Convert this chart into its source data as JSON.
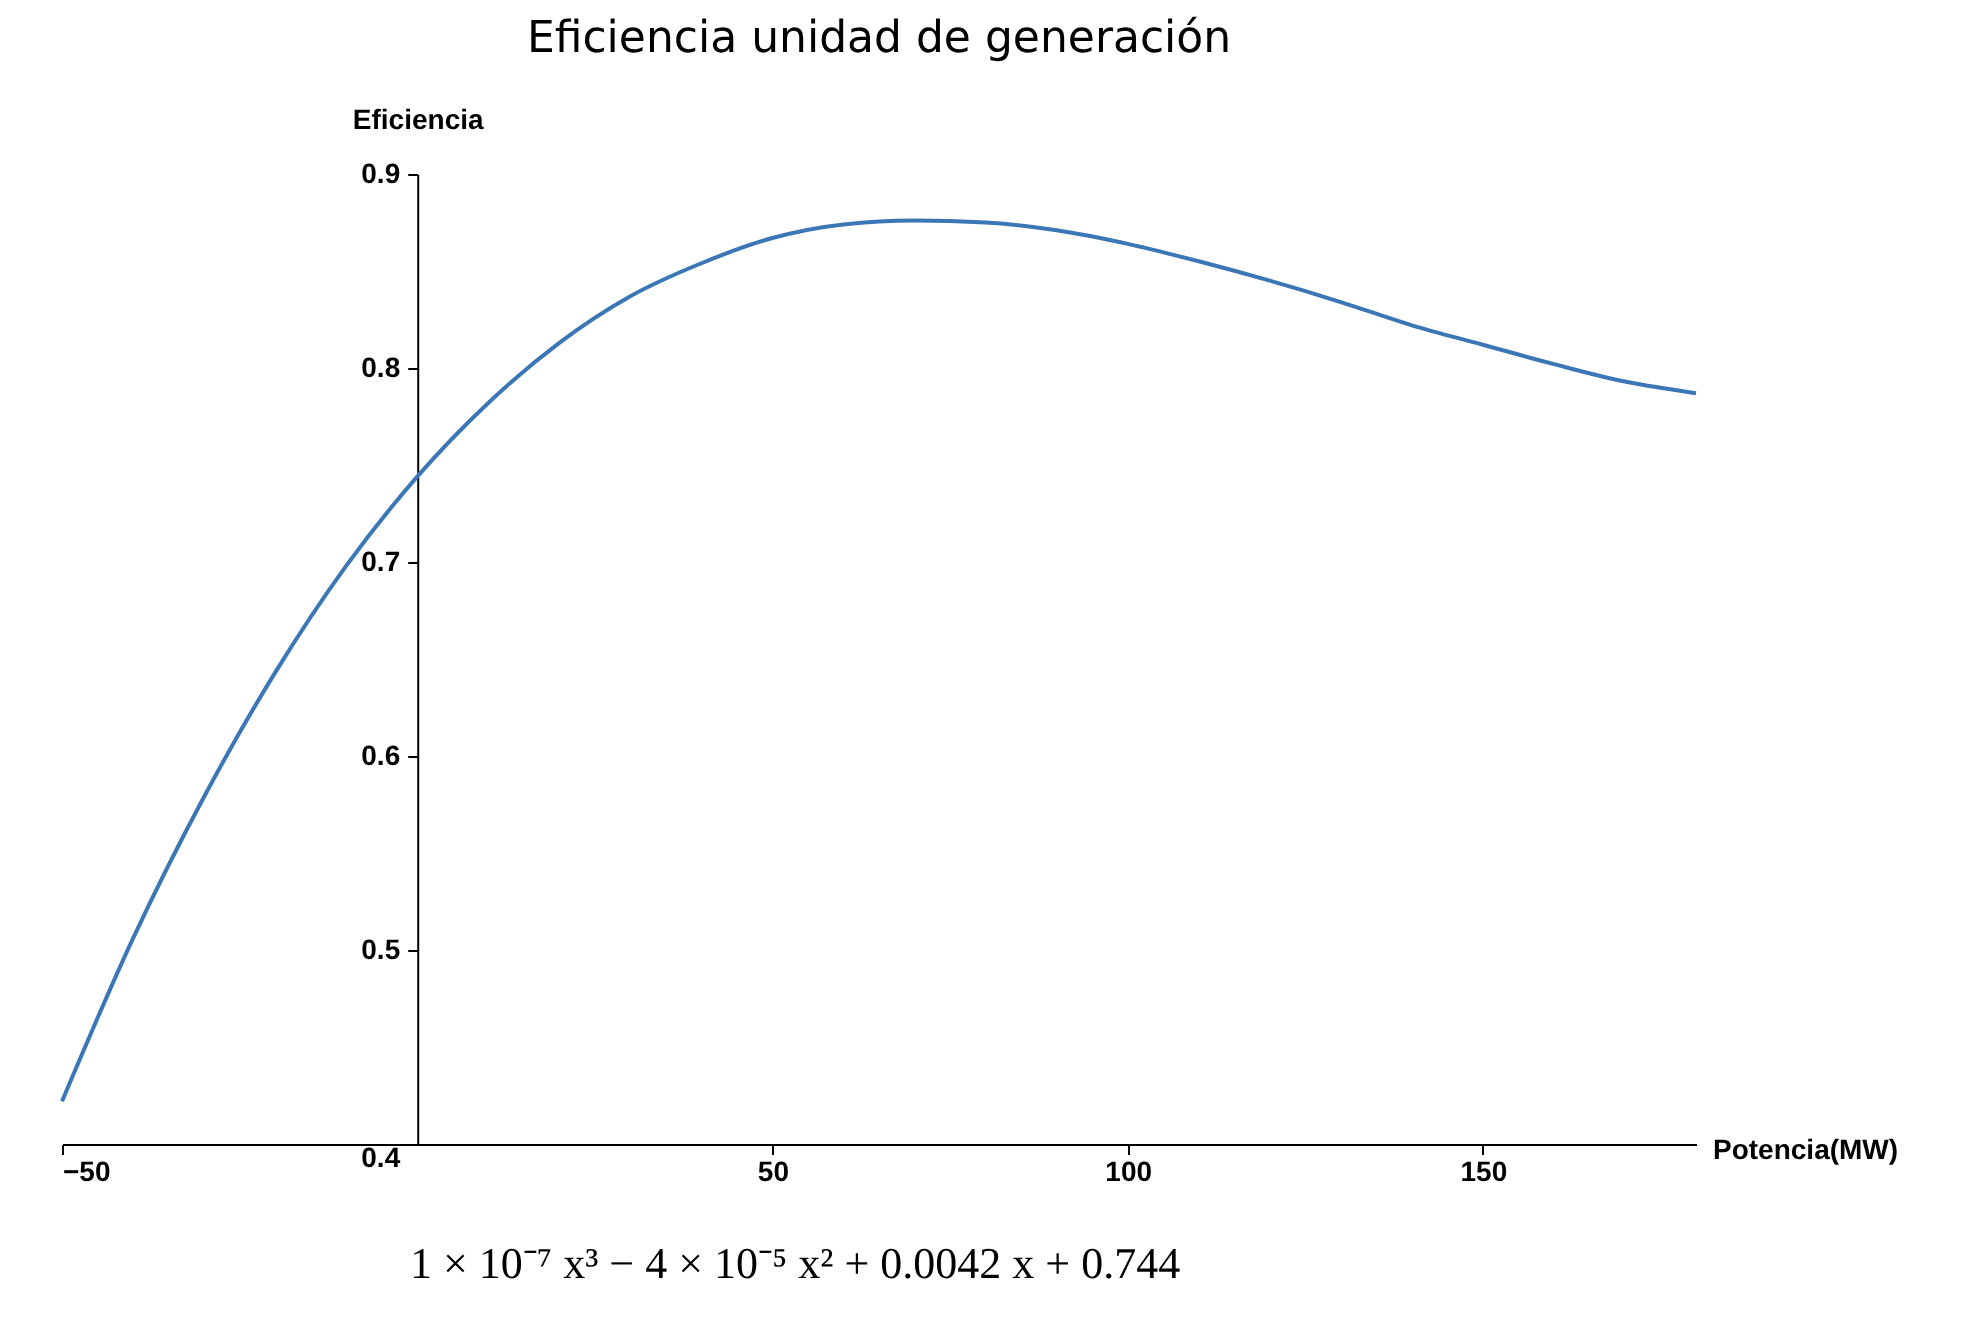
{
  "chart_data": {
    "type": "line",
    "title": "Eficiencia unidad de generación",
    "xlabel": "Potencia(MW)",
    "ylabel": "Eficiencia",
    "x": [
      -50,
      -40,
      -30,
      -20,
      -10,
      0,
      10,
      20,
      30,
      40,
      50,
      60,
      70,
      80,
      90,
      100,
      110,
      120,
      130,
      140,
      150,
      160,
      170,
      180
    ],
    "series": [
      {
        "color": "#3b76b6",
        "values": [
          0.422,
          0.506,
          0.579,
          0.643,
          0.698,
          0.744,
          0.782,
          0.813,
          0.837,
          0.854,
          0.867,
          0.874,
          0.876,
          0.875,
          0.871,
          0.864,
          0.855,
          0.845,
          0.834,
          0.822,
          0.812,
          0.802,
          0.793,
          0.787
        ]
      }
    ],
    "xlim": [
      -50,
      180
    ],
    "xticks": [
      -50,
      50,
      100,
      150
    ],
    "ylim": [
      0.4,
      0.9
    ],
    "yticks": [
      0.4,
      0.5,
      0.6,
      0.7,
      0.8,
      0.9
    ],
    "grid": false,
    "legend": false,
    "marker": "none",
    "line_style": "solid",
    "annotations": [
      "1 × 10⁻⁷ x³ − 4 × 10⁻⁵ x² + 0.0042 x + 0.744"
    ]
  }
}
